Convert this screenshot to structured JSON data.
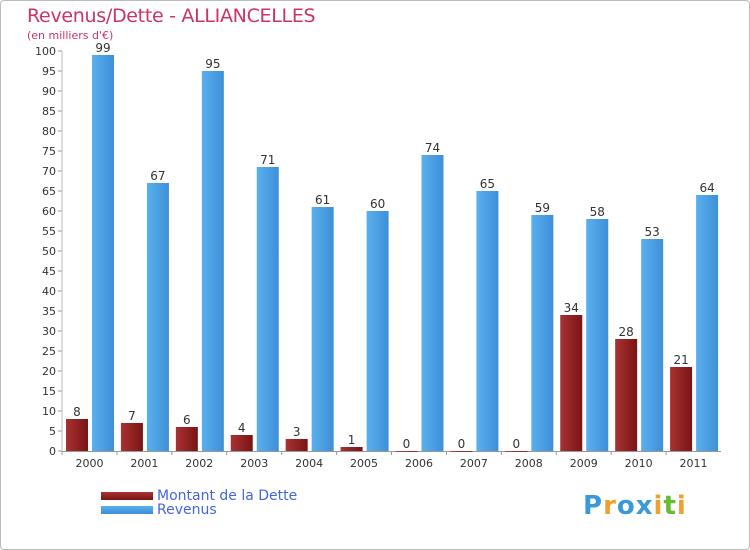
{
  "colors": {
    "debt": "#7a1414",
    "debt_light": "#a83232",
    "revenue": "#3d8fd8",
    "revenue_light": "#5ab0ee",
    "title": "#cc3366",
    "legend_text": "#4466dd",
    "axis_text": "#333333"
  },
  "chart_data": {
    "type": "bar",
    "title": "Revenus/Dette - ALLIANCELLES",
    "subtitle": "(en milliers d'€)",
    "categories": [
      "2000",
      "2001",
      "2002",
      "2003",
      "2004",
      "2005",
      "2006",
      "2007",
      "2008",
      "2009",
      "2010",
      "2011"
    ],
    "series": [
      {
        "name": "Montant de la Dette",
        "values": [
          8,
          7,
          6,
          4,
          3,
          1,
          0,
          0,
          0,
          34,
          28,
          21
        ]
      },
      {
        "name": "Revenus",
        "values": [
          99,
          67,
          95,
          71,
          61,
          60,
          74,
          65,
          59,
          58,
          53,
          64
        ]
      }
    ],
    "ylim": [
      0,
      100
    ],
    "ytick_step": 5,
    "grid": false,
    "legend": "bottom-left"
  },
  "legend": {
    "debt_label": "Montant de la Dette",
    "revenue_label": "Revenus"
  },
  "logo": {
    "letters": [
      "P",
      "r",
      "o",
      "x",
      "i",
      "t",
      "i"
    ],
    "colors": [
      "#3a9ad9",
      "#f0a030",
      "#3a9ad9",
      "#3a9ad9",
      "#f0a030",
      "#66bb33",
      "#f0a030"
    ]
  }
}
